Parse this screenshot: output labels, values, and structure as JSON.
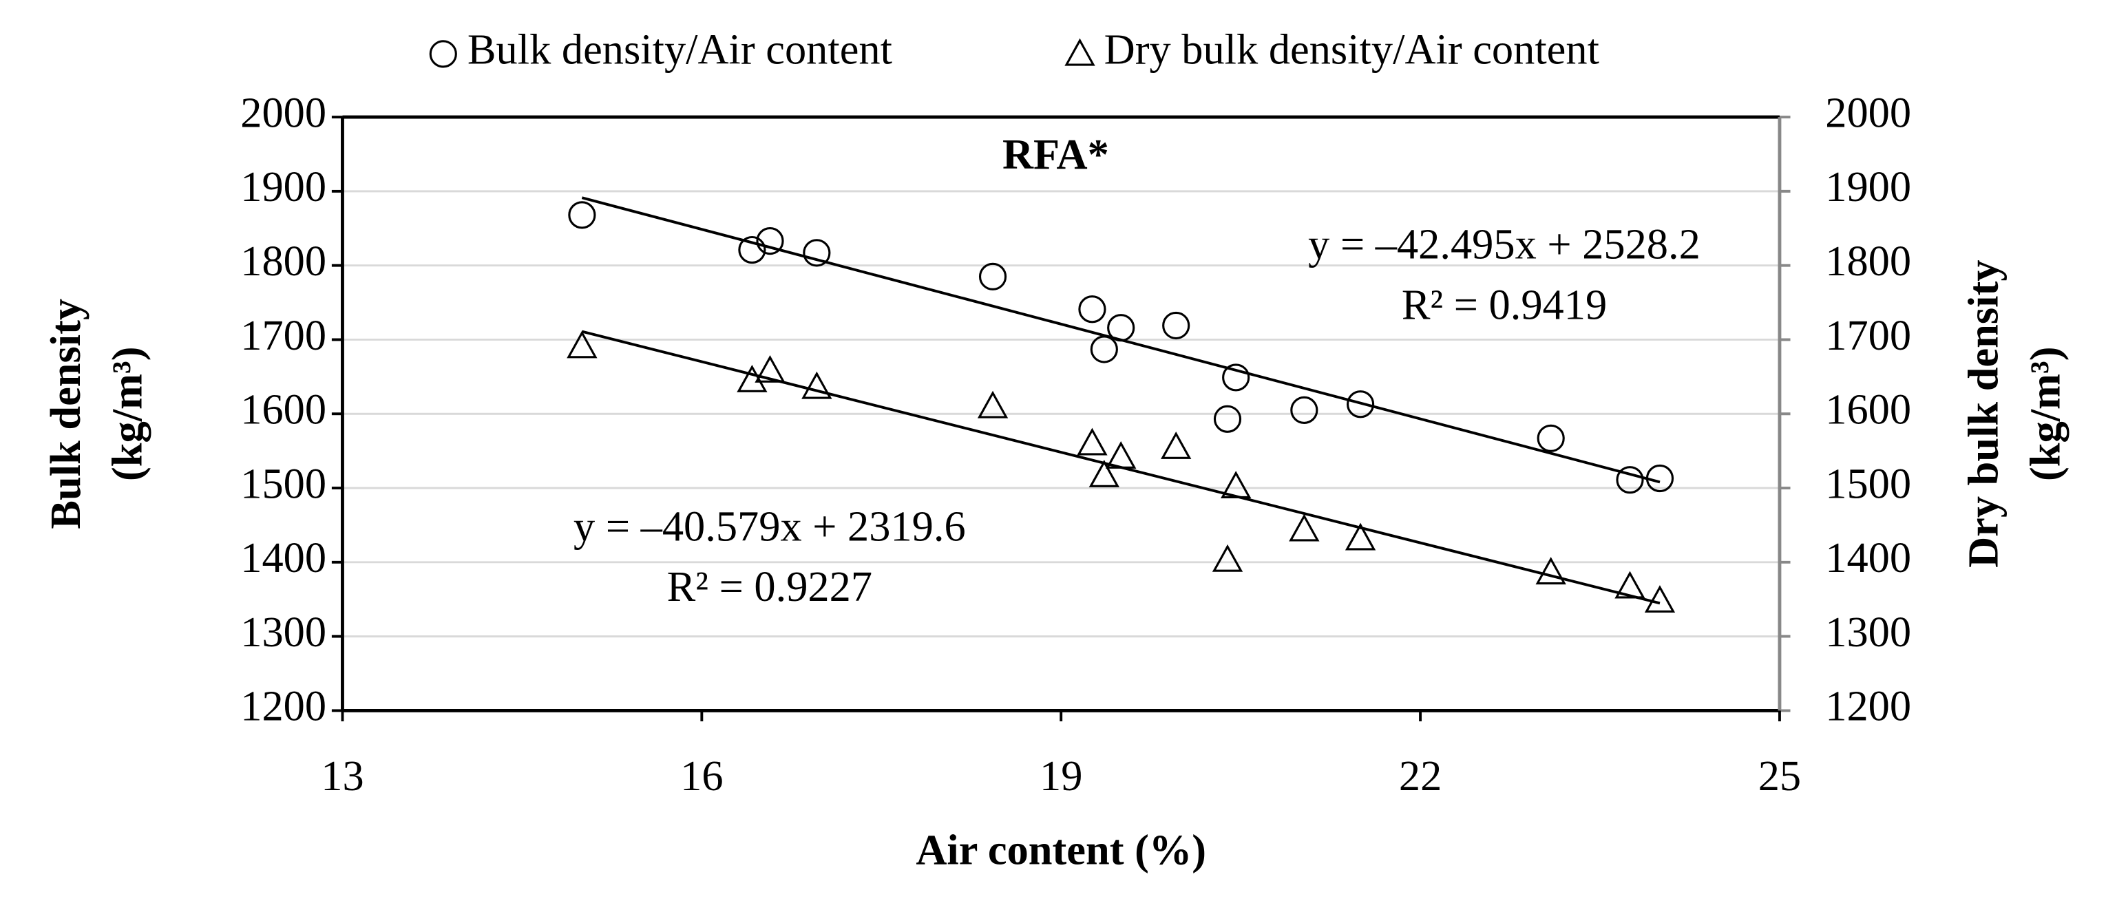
{
  "chart_data": {
    "type": "scatter",
    "title": "RFA*",
    "x_label": "Air content (%)",
    "y_label": [
      "Bulk density",
      "(kg/m³)"
    ],
    "y2_label": [
      "Dry bulk density",
      "(kg/m³)"
    ],
    "xlim": [
      13,
      25
    ],
    "xticks": [
      13,
      16,
      19,
      22,
      25
    ],
    "ylim": [
      1200,
      2000
    ],
    "yticks": [
      1200,
      1300,
      1400,
      1500,
      1600,
      1700,
      1800,
      1900,
      2000
    ],
    "y2lim": [
      1200,
      2000
    ],
    "y2ticks": [
      1200,
      1300,
      1400,
      1500,
      1600,
      1700,
      1800,
      1900,
      2000
    ],
    "grid": true,
    "legend": "top",
    "x": [
      15.0,
      16.42,
      16.57,
      16.96,
      18.43,
      19.26,
      19.5,
      19.36,
      19.96,
      20.46,
      20.39,
      21.03,
      21.5,
      23.09,
      23.75,
      24.0
    ],
    "series": [
      {
        "name": "Bulk density/Air content",
        "color": "#000000",
        "marker": "circle",
        "values": [
          1868,
          1821,
          1833,
          1817,
          1785,
          1741,
          1716,
          1687,
          1719,
          1649,
          1593,
          1605,
          1613,
          1567,
          1511,
          1513
        ],
        "trendline": "y = –42.495x + 2528.2",
        "r_squared": "R² = 0.9419"
      },
      {
        "name": "Dry bulk density/Air content",
        "color": "#000000",
        "marker": "triangle",
        "axis": "y2",
        "values": [
          1691,
          1645,
          1658,
          1636,
          1610,
          1560,
          1542,
          1517,
          1555,
          1502,
          1403,
          1444,
          1432,
          1386,
          1367,
          1348
        ],
        "trendline": "y = –40.579x + 2319.6",
        "r_squared": "R² = 0.9227"
      }
    ]
  }
}
